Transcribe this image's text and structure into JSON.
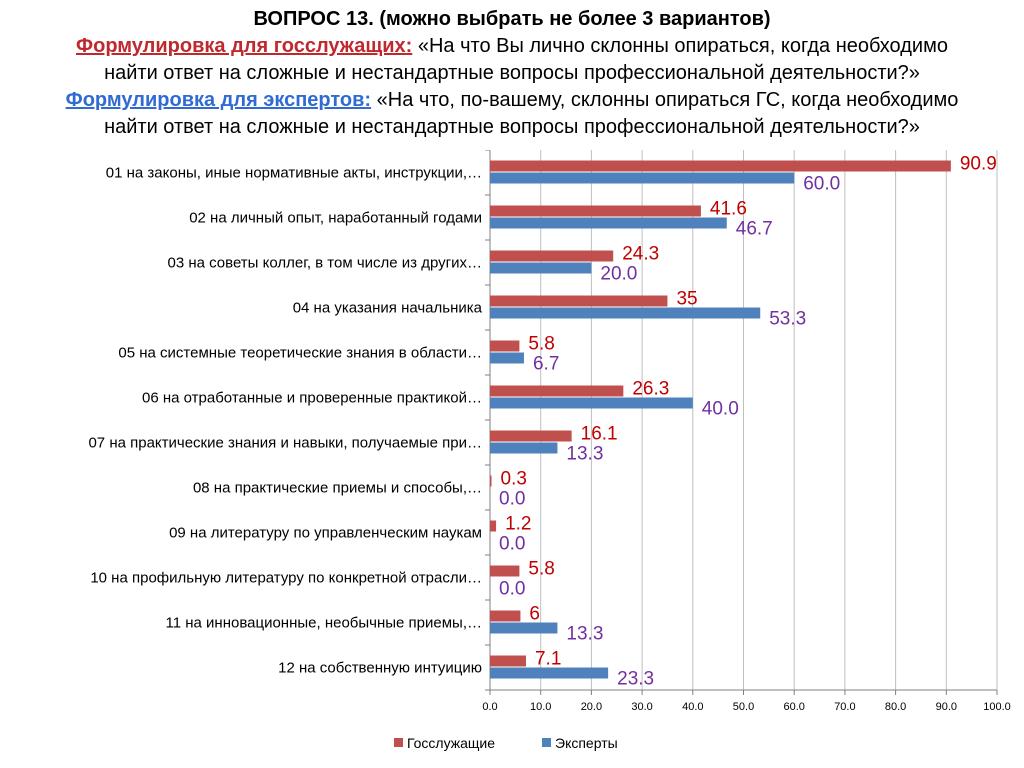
{
  "header": {
    "title": "ВОПРОС 13. (можно выбрать не более 3 вариантов)",
    "gov_label": "Формулировка для госслужащих:",
    "gov_text_1": " «На что Вы лично склонны опираться, когда необходимо",
    "gov_text_2": "найти ответ на сложные и нестандартные вопросы профессиональной деятельности?»",
    "exp_label": "Формулировка для экспертов:",
    "exp_text_1": " «На что, по-вашему, склонны опираться ГС, когда необходимо",
    "exp_text_2": "найти ответ на сложные и нестандартные вопросы профессиональной деятельности?»"
  },
  "colors": {
    "gov": "#c0504d",
    "exp": "#4f81bd",
    "gov_label": "#c00000",
    "exp_label": "#7030a0"
  },
  "chart_data": {
    "type": "bar",
    "orientation": "horizontal",
    "categories": [
      "01  на законы, иные нормативные акты, инструкции,…",
      "02  на личный опыт, наработанный годами",
      "03  на советы коллег, в том числе из других…",
      "04  на указания начальника",
      "05 на системные теоретические знания в области…",
      "06  на отработанные и проверенные практикой…",
      "07  на практические знания и навыки, получаемые при…",
      "08 на практические приемы и способы,…",
      "09  на литературу по управленческим наукам",
      "10  на профильную литературу по конкретной отрасли…",
      "11  на инновационные, необычные приемы,…",
      "12  на собственную интуицию"
    ],
    "series": [
      {
        "name": "Госслужащие",
        "values": [
          90.9,
          41.6,
          24.3,
          35,
          5.8,
          26.3,
          16.1,
          0.3,
          1.2,
          5.8,
          6,
          7.1
        ],
        "labels": [
          "90.9",
          "41.6",
          "24.3",
          "35",
          "5.8",
          "26.3",
          "16.1",
          "0.3",
          "1.2",
          "5.8",
          "6",
          "7.1"
        ]
      },
      {
        "name": "Эксперты",
        "values": [
          60.0,
          46.7,
          20.0,
          53.3,
          6.7,
          40.0,
          13.3,
          0.0,
          0.0,
          0.0,
          13.3,
          23.3
        ],
        "labels": [
          "60.0",
          "46.7",
          "20.0",
          "53.3",
          "6.7",
          "40.0",
          "13.3",
          "0.0",
          "0.0",
          "0.0",
          "13.3",
          "23.3"
        ]
      }
    ],
    "xlim": [
      0,
      100
    ],
    "ticks": [
      "0.0",
      "10.0",
      "20.0",
      "30.0",
      "40.0",
      "50.0",
      "60.0",
      "70.0",
      "80.0",
      "90.0",
      "100.0"
    ],
    "grid": true,
    "legend_position": "bottom"
  }
}
